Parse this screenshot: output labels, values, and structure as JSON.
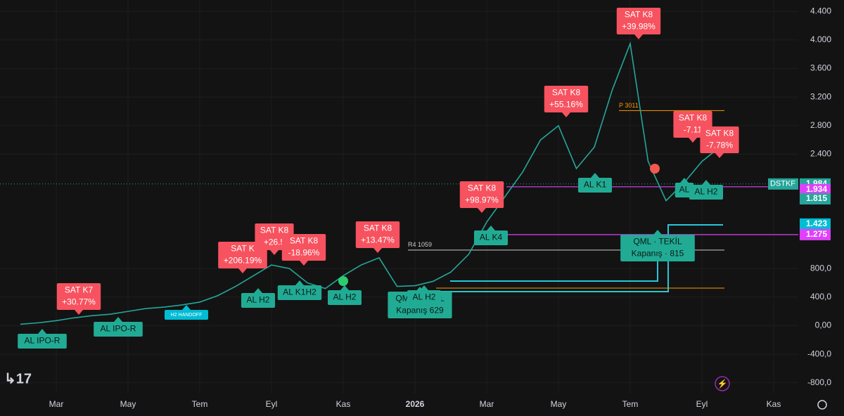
{
  "chart_data": {
    "type": "line",
    "series": [
      {
        "name": "DSTKF",
        "color": "#26a69a",
        "values": [
          20,
          40,
          70,
          110,
          140,
          160,
          200,
          240,
          260,
          290,
          330,
          420,
          550,
          700,
          850,
          800,
          600,
          520,
          700,
          850,
          950,
          550,
          560,
          620,
          750,
          1000,
          1450,
          1800,
          2150,
          2600,
          2800,
          2200,
          2500,
          3300,
          3950,
          2300,
          1750,
          2000,
          2300,
          2500,
          null,
          null,
          null
        ]
      }
    ],
    "categories": [
      null,
      null,
      "Mar",
      null,
      null,
      null,
      "May",
      null,
      null,
      null,
      "Tem",
      null,
      null,
      null,
      "Eyl",
      null,
      null,
      null,
      "Kas",
      null,
      null,
      null,
      "2026",
      null,
      null,
      null,
      "Mar",
      null,
      null,
      null,
      "May",
      null,
      null,
      null,
      "Tem",
      null,
      null,
      null,
      "Eyl",
      null,
      null,
      null,
      "Kas"
    ],
    "ylim": [
      -950,
      4560
    ],
    "yticks": [
      {
        "value": -800,
        "label": "-800,0"
      },
      {
        "value": -400,
        "label": "-400,0"
      },
      {
        "value": 0,
        "label": "0,00"
      },
      {
        "value": 400,
        "label": "400,0"
      },
      {
        "value": 800,
        "label": "800,0"
      },
      {
        "value": 2400,
        "label": "2.400"
      },
      {
        "value": 2800,
        "label": "2.800"
      },
      {
        "value": 3200,
        "label": "3.200"
      },
      {
        "value": 3600,
        "label": "3.600"
      },
      {
        "value": 4000,
        "label": "4.000"
      },
      {
        "value": 4400,
        "label": "4.400"
      }
    ],
    "grid": true,
    "symbol": "DSTKF",
    "price_labels": [
      {
        "label": "1.984",
        "value": 1984,
        "color": "#26a69a"
      },
      {
        "label": "1.934",
        "value": 1934,
        "color": "#e040fb"
      },
      {
        "label": "1.815",
        "value": 1815,
        "color": "#26a69a"
      },
      {
        "label": "1.423",
        "value": 1423,
        "color": "#00bcd4"
      },
      {
        "label": "1.275",
        "value": 1275,
        "color": "#e040fb"
      }
    ],
    "levels": [
      {
        "label": "P 3011",
        "value": 3011,
        "color": "#ff9800"
      },
      {
        "label": "R4 1059",
        "value": 1059,
        "color": "#cccccc"
      }
    ],
    "annotations": [
      {
        "kind": "sell",
        "lines": [
          "SAT K7",
          "+30.77%"
        ]
      },
      {
        "kind": "sell",
        "lines": [
          "SAT K",
          "+206.19%"
        ]
      },
      {
        "kind": "sell",
        "lines": [
          "SAT K8",
          "+26.5"
        ]
      },
      {
        "kind": "sell",
        "lines": [
          "SAT K8",
          "-18.96%"
        ]
      },
      {
        "kind": "sell",
        "lines": [
          "SAT K8",
          "+13.47%"
        ]
      },
      {
        "kind": "sell",
        "lines": [
          "SAT K8",
          "+98.97%"
        ]
      },
      {
        "kind": "sell",
        "lines": [
          "SAT K8",
          "+55.16%"
        ]
      },
      {
        "kind": "sell",
        "lines": [
          "SAT K8",
          "+39.98%"
        ]
      },
      {
        "kind": "sell",
        "lines": [
          "SAT K8",
          "-7.11"
        ]
      },
      {
        "kind": "sell",
        "lines": [
          "SAT K8",
          "-7.78%"
        ]
      },
      {
        "kind": "buy",
        "lines": [
          "AL IPO-R"
        ]
      },
      {
        "kind": "buy",
        "lines": [
          "AL IPO-R"
        ]
      },
      {
        "kind": "tag",
        "lines": [
          "H2 HANDOFF"
        ]
      },
      {
        "kind": "buy",
        "lines": [
          "AL H2"
        ]
      },
      {
        "kind": "buy",
        "lines": [
          "AL K1H2"
        ]
      },
      {
        "kind": "buy",
        "lines": [
          "AL H2"
        ]
      },
      {
        "kind": "buy",
        "lines": [
          "QML · TEKİL",
          "Kapanış 629"
        ]
      },
      {
        "kind": "buy",
        "lines": [
          "AL H2"
        ]
      },
      {
        "kind": "buy",
        "lines": [
          "AL K4"
        ]
      },
      {
        "kind": "buy",
        "lines": [
          "AL K1"
        ]
      },
      {
        "kind": "buy",
        "lines": [
          "QML · TEKİL",
          "Kapanış · 815"
        ]
      },
      {
        "kind": "buy",
        "lines": [
          "AL"
        ]
      },
      {
        "kind": "buy",
        "lines": [
          "AL H2"
        ]
      }
    ]
  }
}
